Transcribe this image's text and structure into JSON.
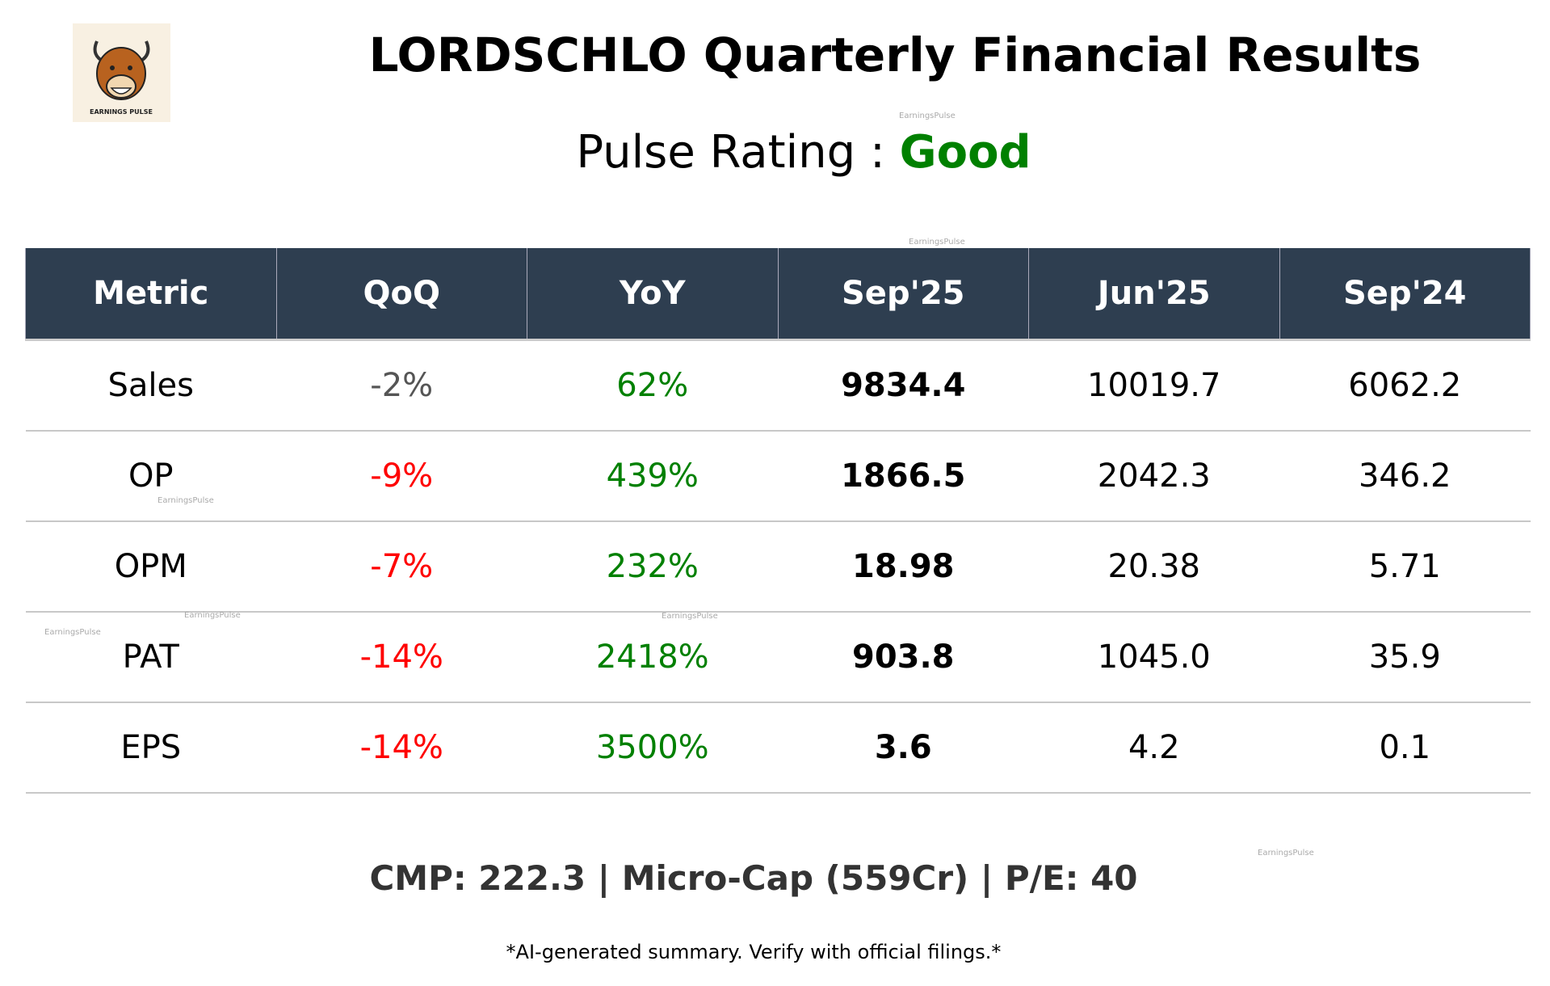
{
  "header": {
    "logo_text": "EARNINGS PULSE",
    "title": "LORDSCHLO Quarterly Financial Results",
    "rating_label": "Pulse Rating : ",
    "rating_value": "Good",
    "rating_color": "#008000"
  },
  "chart_data": {
    "type": "table",
    "columns": [
      "Metric",
      "QoQ",
      "YoY",
      "Sep'25",
      "Jun'25",
      "Sep'24"
    ],
    "rows": [
      {
        "metric": "Sales",
        "qoq": "-2%",
        "yoy": "62%",
        "sep25": "9834.4",
        "jun25": "10019.7",
        "sep24": "6062.2",
        "qoq_color": "#555555",
        "yoy_color": "#008000"
      },
      {
        "metric": "OP",
        "qoq": "-9%",
        "yoy": "439%",
        "sep25": "1866.5",
        "jun25": "2042.3",
        "sep24": "346.2",
        "qoq_color": "#ff0000",
        "yoy_color": "#008000"
      },
      {
        "metric": "OPM",
        "qoq": "-7%",
        "yoy": "232%",
        "sep25": "18.98",
        "jun25": "20.38",
        "sep24": "5.71",
        "qoq_color": "#ff0000",
        "yoy_color": "#008000"
      },
      {
        "metric": "PAT",
        "qoq": "-14%",
        "yoy": "2418%",
        "sep25": "903.8",
        "jun25": "1045.0",
        "sep24": "35.9",
        "qoq_color": "#ff0000",
        "yoy_color": "#008000"
      },
      {
        "metric": "EPS",
        "qoq": "-14%",
        "yoy": "3500%",
        "sep25": "3.6",
        "jun25": "4.2",
        "sep24": "0.1",
        "qoq_color": "#ff0000",
        "yoy_color": "#008000"
      }
    ],
    "header_color": "#2e3e50"
  },
  "footer": {
    "summary": "CMP: 222.3 | Micro-Cap (559Cr) | P/E: 40",
    "disclaimer": "*AI-generated summary. Verify with official filings.*"
  },
  "watermark": "EarningsPulse"
}
